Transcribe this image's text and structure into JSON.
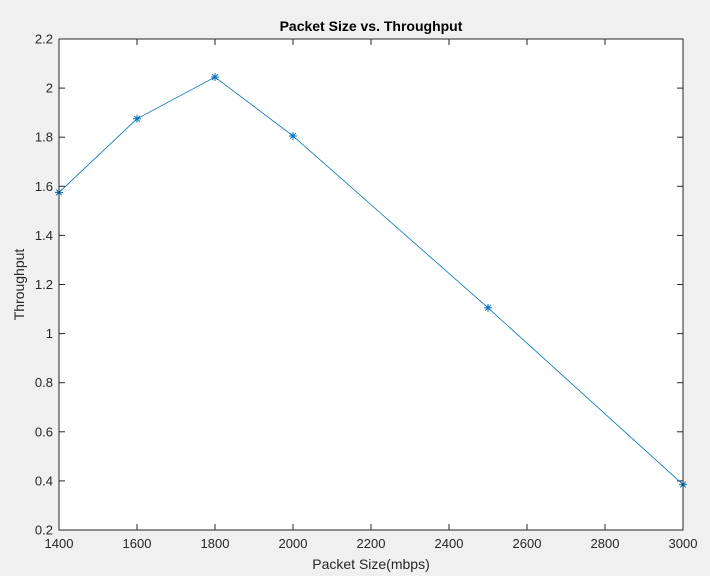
{
  "chart_data": {
    "type": "line",
    "title": "Packet Size vs. Throughput",
    "xlabel": "Packet Size(mbps)",
    "ylabel": "Throughput",
    "xlim": [
      1400,
      3000
    ],
    "ylim": [
      0.2,
      2.2
    ],
    "x_ticks": [
      1400,
      1600,
      1800,
      2000,
      2200,
      2400,
      2600,
      2800,
      3000
    ],
    "x_tick_labels": [
      "1400",
      "1600",
      "1800",
      "2000",
      "2200",
      "2400",
      "2600",
      "2800",
      "3000"
    ],
    "y_ticks": [
      0.2,
      0.4,
      0.6,
      0.8,
      1.0,
      1.2,
      1.4,
      1.6,
      1.8,
      2.0,
      2.2
    ],
    "y_tick_labels": [
      "0.2",
      "0.4",
      "0.6",
      "0.8",
      "1",
      "1.2",
      "1.4",
      "1.6",
      "1.8",
      "2",
      "2.2"
    ],
    "grid": false,
    "marker": "asterisk",
    "series": [
      {
        "x": [
          1400,
          1600,
          1800,
          2000,
          2500,
          3000
        ],
        "values": [
          1.575,
          1.875,
          2.045,
          1.805,
          1.105,
          0.385
        ]
      }
    ],
    "colors": {
      "line": "#0072bd",
      "axes_background": "#ffffff",
      "figure_background": "#f0f0f0",
      "axis": "#262626"
    }
  }
}
